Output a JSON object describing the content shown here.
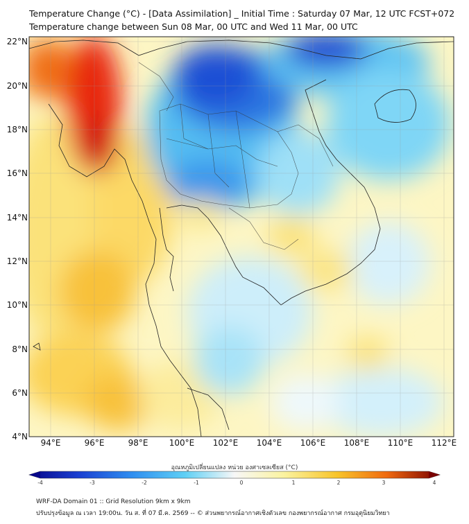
{
  "title_line1": "Temperature Change (°C) - [Data Assimilation] _ Initial Time : Saturday 07 Mar, 12 UTC FCST+072",
  "title_line2": "Temperature change between Sun 08 Mar, 00 UTC and Wed 11 Mar, 00 UTC",
  "lat_labels": [
    "22°N",
    "20°N",
    "18°N",
    "16°N",
    "14°N",
    "12°N",
    "10°N",
    "8°N",
    "6°N",
    "4°N"
  ],
  "lon_labels": [
    "94°E",
    "96°E",
    "98°E",
    "100°E",
    "102°E",
    "104°E",
    "106°E",
    "108°E",
    "110°E",
    "112°E"
  ],
  "colorbar": {
    "title": "อุณหภูมิเปลี่ยนแปลง หน่วย องศาเซลเซียส (°C)",
    "ticks": [
      "-4",
      "-3",
      "-2",
      "-1",
      "0",
      "1",
      "2",
      "3",
      "4"
    ],
    "colors": [
      "#08088a",
      "#1a3fd1",
      "#2f8ef0",
      "#5fd0f5",
      "#f7f7f7",
      "#fbf3a0",
      "#f8c42a",
      "#f06a10",
      "#d11008",
      "#7a0000"
    ]
  },
  "footer_line1": "WRF-DA Domain 01 :: Grid Resolution 9km x 9km",
  "footer_line2": "ปรับปรุงข้อมูล ณ เวลา 19:00น. วัน ส. ที่ 07 มี.ค. 2569 -- © ส่วนพยากรณ์อากาศเชิงตัวเลข กองพยากรณ์อากาศ กรมอุตุนิยมวิทยา"
}
